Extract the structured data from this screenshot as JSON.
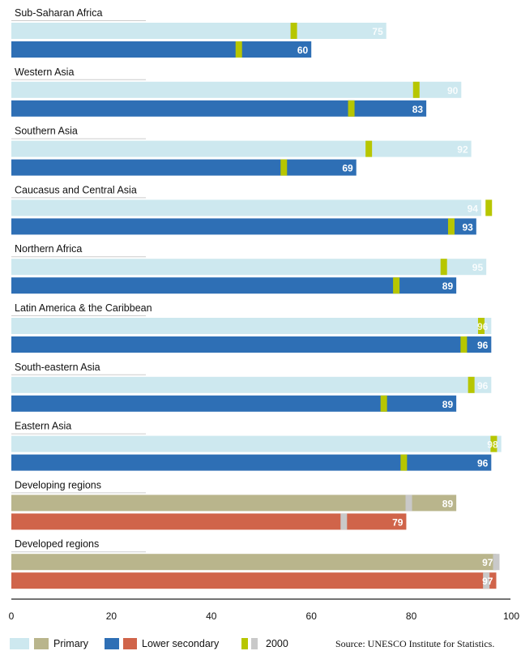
{
  "chart_data": {
    "type": "bar",
    "orientation": "horizontal",
    "xlim": [
      0,
      100
    ],
    "x_ticks": [
      "0",
      "20",
      "40",
      "60",
      "80",
      "100"
    ],
    "grid": false,
    "legend_position": "bottom-left",
    "categories": [
      "Sub-Saharan Africa",
      "Western Asia",
      "Southern Asia",
      "Caucasus and Central Asia",
      "Northern Africa",
      "Latin America & the Caribbean",
      "South-eastern Asia",
      "Eastern Asia",
      "Developing regions",
      "Developed regions"
    ],
    "series": [
      {
        "name": "Primary",
        "values": [
          75,
          90,
          92,
          94,
          95,
          96,
          96,
          98,
          89,
          97
        ]
      },
      {
        "name": "Lower secondary",
        "values": [
          60,
          83,
          69,
          93,
          89,
          96,
          89,
          96,
          79,
          97
        ]
      },
      {
        "name": "2000 (primary)",
        "values": [
          56.5,
          81,
          71.5,
          95.5,
          86.5,
          94,
          92,
          96.5,
          79.5,
          97
        ]
      },
      {
        "name": "2000 (lower secondary)",
        "values": [
          45.5,
          68,
          54.5,
          88,
          77,
          90.5,
          74.5,
          78.5,
          66.5,
          95
        ]
      }
    ],
    "category_group": [
      "region",
      "region",
      "region",
      "region",
      "region",
      "region",
      "region",
      "region",
      "aggregate",
      "aggregate"
    ],
    "legend": {
      "primary_label": "Primary",
      "lower_secondary_label": "Lower secondary",
      "year_label": "2000"
    },
    "source": "Source: UNESCO Institute for Statistics."
  },
  "colors": {
    "primary_region": "#cde8ef",
    "lower_secondary_region": "#2e6fb5",
    "primary_aggregate": "#b9b58c",
    "lower_secondary_aggregate": "#d0644a",
    "marker_region": "#b7c600",
    "marker_aggregate": "#c9c9c9",
    "axis": "#222222"
  }
}
